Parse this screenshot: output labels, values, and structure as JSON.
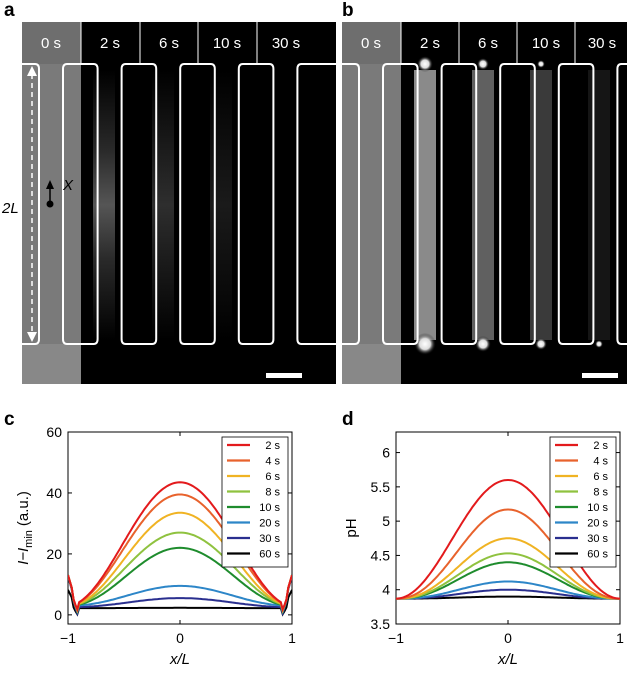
{
  "panels": {
    "a": {
      "label": "a",
      "time_labels": [
        "0 s",
        "2 s",
        "6 s",
        "10 s",
        "30 s"
      ],
      "length_label": "2L",
      "x_label": "X"
    },
    "b": {
      "label": "b",
      "time_labels": [
        "0 s",
        "2 s",
        "6 s",
        "10 s",
        "30 s"
      ]
    },
    "c": {
      "label": "c"
    },
    "d": {
      "label": "d"
    }
  },
  "chart_data": [
    {
      "id": "c",
      "type": "line",
      "title": "",
      "xlabel": "x/L",
      "ylabel": "I−I_min (a.u.)",
      "ylabel_parts": {
        "main": "I−I",
        "sub": "min",
        "unit": "(a.u.)"
      },
      "xlim": [
        -1,
        1
      ],
      "ylim": [
        -3,
        60
      ],
      "xticks": [
        -1,
        0,
        1
      ],
      "xtick_labels": [
        "−1",
        "0",
        "1"
      ],
      "yticks": [
        0,
        20,
        40,
        60
      ],
      "ytick_labels": [
        "0",
        "20",
        "40",
        "60"
      ],
      "legend_position": "top-right",
      "series": [
        {
          "name": "2 s",
          "color": "#e31a1c",
          "peak": 43.5,
          "edge": 3,
          "shape": 1.9
        },
        {
          "name": "4 s",
          "color": "#e8622c",
          "peak": 39.5,
          "edge": 3,
          "shape": 1.9
        },
        {
          "name": "6 s",
          "color": "#f0b323",
          "peak": 33.5,
          "edge": 3,
          "shape": 2.0
        },
        {
          "name": "8 s",
          "color": "#8fc23f",
          "peak": 27.0,
          "edge": 3,
          "shape": 2.0
        },
        {
          "name": "10 s",
          "color": "#1e8c2d",
          "peak": 22.0,
          "edge": 3,
          "shape": 2.1
        },
        {
          "name": "20 s",
          "color": "#2d86c8",
          "peak": 9.5,
          "edge": 3,
          "shape": 2.2
        },
        {
          "name": "30 s",
          "color": "#2a2f8f",
          "peak": 5.5,
          "edge": 2.5,
          "shape": 2.2
        },
        {
          "name": "60 s",
          "color": "#000000",
          "peak": 2.3,
          "edge": 2.2,
          "shape": 2.2
        }
      ]
    },
    {
      "id": "d",
      "type": "line",
      "title": "",
      "xlabel": "x/L",
      "ylabel": "pH",
      "xlim": [
        -1,
        1
      ],
      "ylim": [
        3.5,
        6.3
      ],
      "xticks": [
        -1,
        0,
        1
      ],
      "xtick_labels": [
        "−1",
        "0",
        "1"
      ],
      "yticks": [
        3.5,
        4,
        4.5,
        5,
        5.5,
        6
      ],
      "ytick_labels": [
        "3.5",
        "4",
        "4.5",
        "5",
        "5.5",
        "6"
      ],
      "legend_position": "top-right",
      "series": [
        {
          "name": "2 s",
          "color": "#e31a1c",
          "peak": 5.6,
          "edge": 3.87,
          "shape": 2.0
        },
        {
          "name": "4 s",
          "color": "#e8622c",
          "peak": 5.17,
          "edge": 3.87,
          "shape": 2.3
        },
        {
          "name": "6 s",
          "color": "#f0b323",
          "peak": 4.75,
          "edge": 3.87,
          "shape": 2.4
        },
        {
          "name": "8 s",
          "color": "#8fc23f",
          "peak": 4.53,
          "edge": 3.87,
          "shape": 2.4
        },
        {
          "name": "10 s",
          "color": "#1e8c2d",
          "peak": 4.4,
          "edge": 3.87,
          "shape": 2.4
        },
        {
          "name": "20 s",
          "color": "#2d86c8",
          "peak": 4.12,
          "edge": 3.87,
          "shape": 2.5
        },
        {
          "name": "30 s",
          "color": "#2a2f8f",
          "peak": 4.0,
          "edge": 3.87,
          "shape": 2.5
        },
        {
          "name": "60 s",
          "color": "#000000",
          "peak": 3.9,
          "edge": 3.87,
          "shape": 2.5
        }
      ]
    }
  ]
}
